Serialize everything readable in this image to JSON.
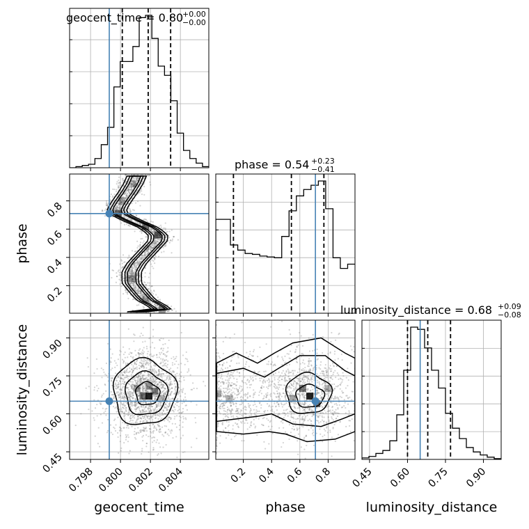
{
  "chart_data": {
    "type": "corner",
    "parameters": [
      "geocent_time",
      "phase",
      "luminosity_distance"
    ],
    "titles": [
      {
        "label": "geocent_time = 0.80",
        "sup": "+0.00",
        "sub": "−0.00"
      },
      {
        "label": "phase = 0.54",
        "sup": "+0.23",
        "sub": "−0.41"
      },
      {
        "label": "luminosity_distance = 0.68",
        "sup": "+0.09",
        "sub": "−0.08"
      }
    ],
    "axis_labels": {
      "x": [
        "geocent_time",
        "phase",
        "luminosity_distance"
      ],
      "y": [
        "phase",
        "luminosity_distance"
      ]
    },
    "ranges": {
      "geocent_time": [
        0.7966,
        0.8059
      ],
      "phase": [
        0.005,
        0.99
      ],
      "luminosity_distance": [
        0.42,
        0.97
      ]
    },
    "ticks": {
      "geocent_time": [
        0.798,
        0.8,
        0.802,
        0.804
      ],
      "geocent_time_labels": [
        "0.798",
        "0.800",
        "0.802",
        "0.804"
      ],
      "phase": [
        0.2,
        0.4,
        0.6,
        0.8
      ],
      "phase_labels": [
        "0.2",
        "0.4",
        "0.6",
        "0.8"
      ],
      "luminosity_distance": [
        0.45,
        0.6,
        0.75,
        0.9
      ],
      "luminosity_distance_labels": [
        "0.45",
        "0.60",
        "0.75",
        "0.90"
      ]
    },
    "truth": {
      "geocent_time": 0.79925,
      "phase": 0.71,
      "luminosity_distance": 0.65
    },
    "quantiles": {
      "geocent_time": [
        0.80012,
        0.80185,
        0.80335
      ],
      "phase": [
        0.13,
        0.54,
        0.77
      ],
      "luminosity_distance": [
        0.6,
        0.68,
        0.77
      ]
    },
    "histograms": {
      "geocent_time": {
        "edges_range": [
          0.7966,
          0.8059
        ],
        "counts": [
          0,
          1,
          2,
          3,
          8,
          20,
          35,
          70,
          92,
          92,
          105,
          130,
          132,
          112,
          88,
          80,
          58,
          30,
          15,
          8,
          4,
          1
        ]
      },
      "phase": {
        "edges_range": [
          0.005,
          0.99
        ],
        "counts": [
          220,
          220,
          160,
          148,
          140,
          138,
          134,
          132,
          130,
          180,
          240,
          275,
          290,
          300,
          310,
          245,
          130,
          105,
          115
        ]
      },
      "luminosity_distance": {
        "edges_range": [
          0.42,
          0.97
        ],
        "counts": [
          2,
          4,
          8,
          12,
          25,
          60,
          120,
          178,
          175,
          150,
          120,
          96,
          62,
          42,
          28,
          16,
          10,
          6,
          3,
          1
        ]
      }
    },
    "ridge_phase_vs_time": [
      [
        0.8029,
        0.02
      ],
      [
        0.8024,
        0.06
      ],
      [
        0.8017,
        0.1
      ],
      [
        0.8012,
        0.16
      ],
      [
        0.80075,
        0.22
      ],
      [
        0.80075,
        0.3
      ],
      [
        0.8011,
        0.36
      ],
      [
        0.8018,
        0.44
      ],
      [
        0.8025,
        0.52
      ],
      [
        0.8025,
        0.56
      ],
      [
        0.8019,
        0.61
      ],
      [
        0.8008,
        0.66
      ],
      [
        0.79985,
        0.71
      ],
      [
        0.79975,
        0.74
      ],
      [
        0.8001,
        0.8
      ],
      [
        0.8005,
        0.86
      ],
      [
        0.80085,
        0.92
      ],
      [
        0.8011,
        0.98
      ]
    ],
    "grid": true
  },
  "panels": {
    "titles": {
      "geocent_time": "geocent_time",
      "phase": "phase",
      "luminosity_distance": "luminosity_distance"
    }
  },
  "colors": {
    "truth": "#4682b4",
    "hist": "#000000",
    "grid": "#b0b0b0",
    "points": "#808080"
  }
}
